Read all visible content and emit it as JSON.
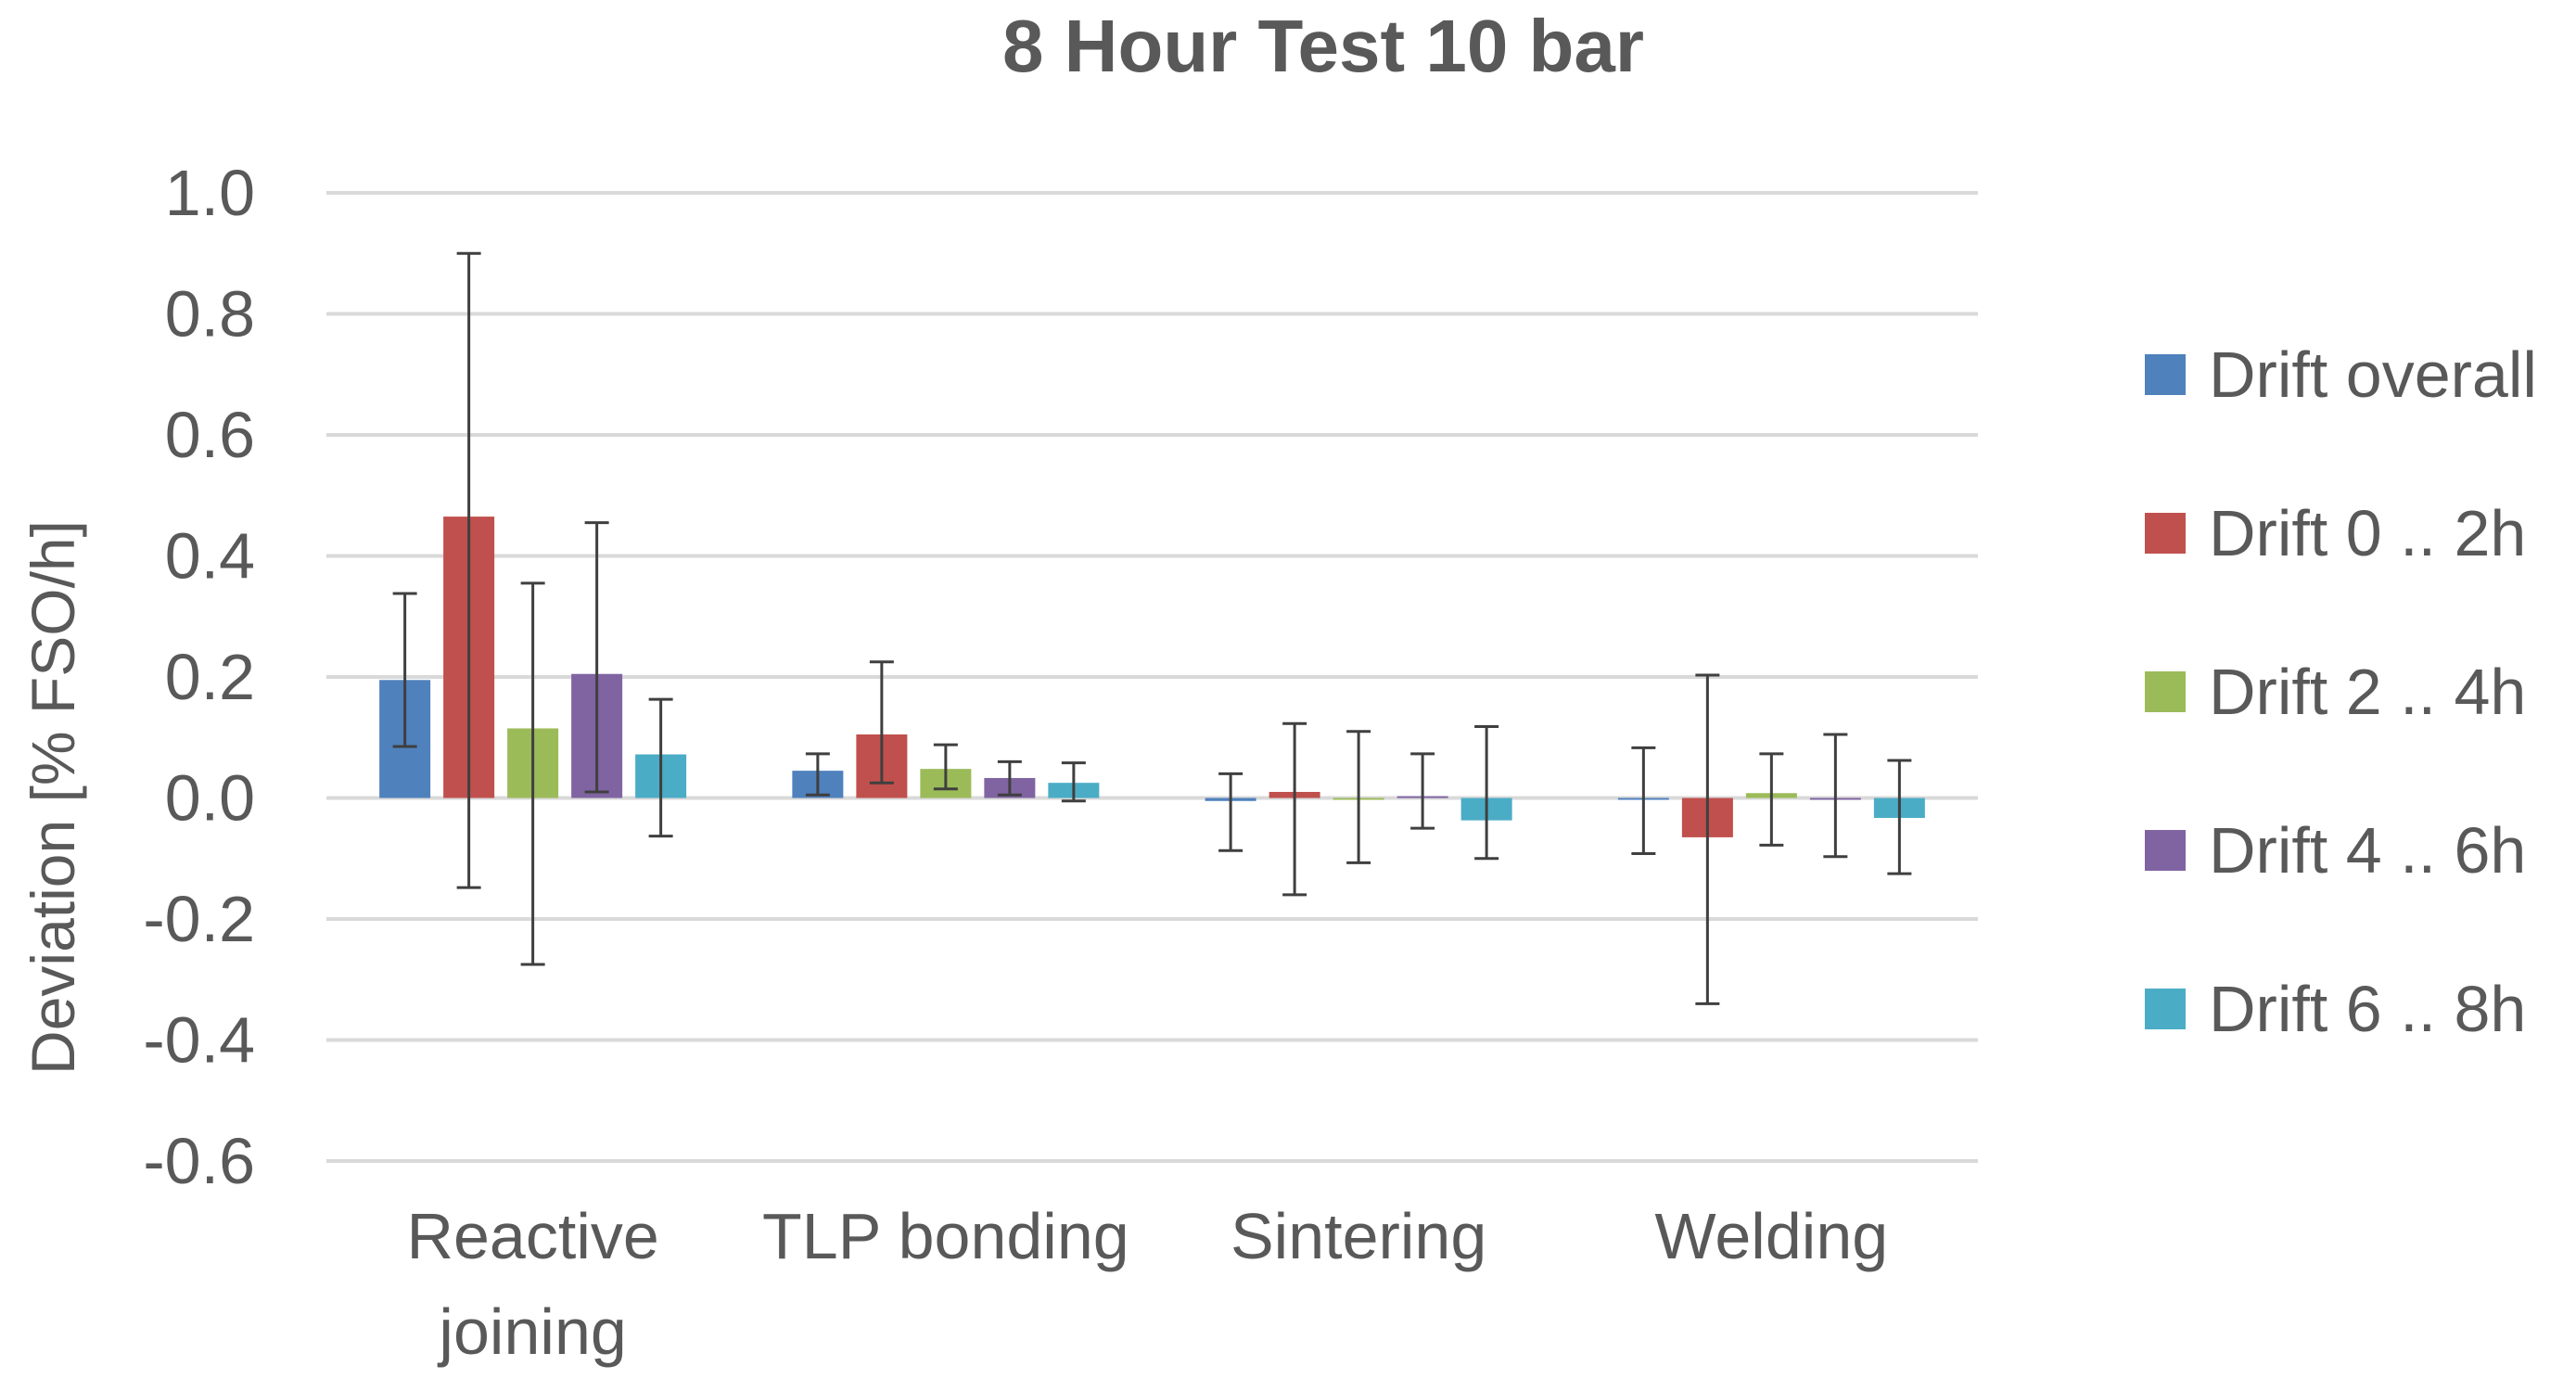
{
  "chart_data": {
    "type": "bar",
    "title": "8 Hour Test 10 bar",
    "xlabel": "",
    "ylabel": "Deviation [% FSO/h]",
    "ylim": [
      -0.6,
      1.0
    ],
    "ytick_step": 0.2,
    "yticks": [
      "1.0",
      "0.8",
      "0.6",
      "0.4",
      "0.2",
      "0.0",
      "-0.2",
      "-0.4",
      "-0.6"
    ],
    "grid": true,
    "legend_position": "right",
    "categories": [
      [
        "Reactive",
        "joining"
      ],
      [
        "TLP bonding"
      ],
      [
        "Sintering"
      ],
      [
        "Welding"
      ]
    ],
    "series": [
      {
        "name": "Drift overall",
        "color": "#4F81BD",
        "values": [
          0.195,
          0.045,
          -0.005,
          0.0
        ],
        "err_low": [
          0.085,
          0.005,
          -0.087,
          -0.092
        ],
        "err_high": [
          0.338,
          0.073,
          0.04,
          0.083
        ]
      },
      {
        "name": "Drift 0 .. 2h",
        "color": "#C0504D",
        "values": [
          0.465,
          0.105,
          0.01,
          -0.065
        ],
        "err_low": [
          -0.148,
          0.025,
          -0.16,
          -0.34
        ],
        "err_high": [
          0.9,
          0.225,
          0.123,
          0.203
        ]
      },
      {
        "name": "Drift 2 .. 4h",
        "color": "#9BBB59",
        "values": [
          0.115,
          0.048,
          0.0,
          0.008
        ],
        "err_low": [
          -0.275,
          0.015,
          -0.107,
          -0.078
        ],
        "err_high": [
          0.355,
          0.088,
          0.11,
          0.073
        ]
      },
      {
        "name": "Drift 4 .. 6h",
        "color": "#8064A2",
        "values": [
          0.205,
          0.033,
          0.003,
          0.0
        ],
        "err_low": [
          0.01,
          0.005,
          -0.05,
          -0.097
        ],
        "err_high": [
          0.455,
          0.06,
          0.073,
          0.105
        ]
      },
      {
        "name": "Drift 6 .. 8h",
        "color": "#4BACC6",
        "values": [
          0.072,
          0.025,
          -0.037,
          -0.033
        ],
        "err_low": [
          -0.063,
          -0.005,
          -0.1,
          -0.125
        ],
        "err_high": [
          0.163,
          0.058,
          0.118,
          0.062
        ]
      }
    ]
  }
}
